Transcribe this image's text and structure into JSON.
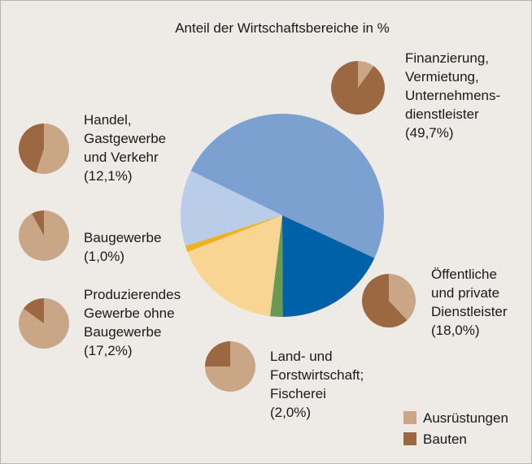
{
  "chart_data": {
    "type": "pie",
    "title": "Anteil der Wirtschaftsbereiche in %",
    "categories": [
      "Finanzierung,\nVermietung,\nUnternehmens-\ndienstleister",
      "Öffentliche\nund private\nDienstleister",
      "Land- und\nForstwirtschaft;\nFischerei",
      "Produzierendes\nGewerbe ohne\nBaugewerbe",
      "Baugewerbe",
      "Handel,\nGastgewerbe\nund Verkehr"
    ],
    "values": [
      49.7,
      18.0,
      2.0,
      17.2,
      1.0,
      12.1
    ],
    "value_labels": [
      "(49,7%)",
      "(18,0%)",
      "(2,0%)",
      "(17,2%)",
      "(1,0%)",
      "(12,1%)"
    ],
    "colors": [
      "#7aa1d0",
      "#0061a9",
      "#6a9a52",
      "#f8d592",
      "#f0b024",
      "#b9cde9"
    ],
    "sub_series": [
      {
        "name": "Ausrüstungen",
        "color": "#c9a686",
        "values": [
          10,
          38,
          75,
          85,
          92,
          55
        ]
      },
      {
        "name": "Bauten",
        "color": "#9b6842",
        "values": [
          90,
          62,
          25,
          15,
          8,
          45
        ]
      }
    ]
  }
}
